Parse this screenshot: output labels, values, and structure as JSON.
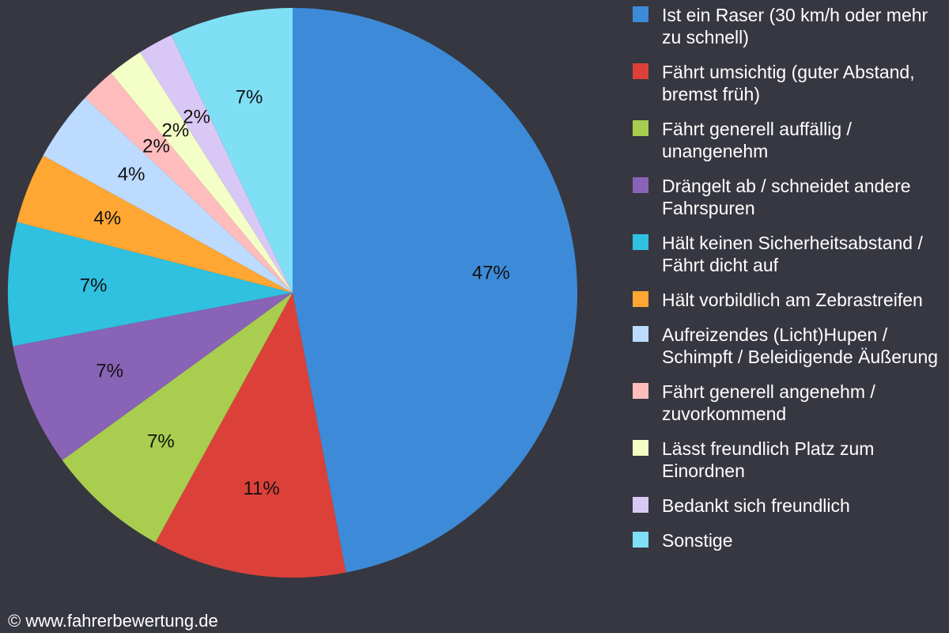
{
  "chart_data": {
    "type": "pie",
    "categories": [
      "Ist ein Raser (30 km/h oder mehr zu schnell)",
      "Fährt umsichtig (guter Abstand, bremst früh)",
      "Fährt generell auffällig / unangenehm",
      "Drängelt ab / schneidet andere Fahrspuren",
      "Hält keinen Sicherheitsabstand / Fährt dicht auf",
      "Hält vorbildlich am Zebrastreifen",
      "Aufreizendes (Licht)Hupen / Schimpft / Beleidigende Äußerung",
      "Fährt generell angenehm / zuvorkommend",
      "Lässt freundlich Platz zum Einordnen",
      "Bedankt sich freundlich",
      "Sonstige"
    ],
    "values": [
      47,
      11,
      7,
      7,
      7,
      4,
      4,
      2,
      2,
      2,
      7
    ],
    "value_labels": [
      "47%",
      "11%",
      "7%",
      "7%",
      "7%",
      "4%",
      "4%",
      "2%",
      "2%",
      "2%",
      "7%"
    ],
    "colors": [
      "#3d8bd8",
      "#dc4139",
      "#a8cd4f",
      "#8963b5",
      "#30c0e0",
      "#ffa633",
      "#bcdbff",
      "#ffbcbc",
      "#f3ffc6",
      "#d9c8f5",
      "#7fdff5"
    ],
    "legend": "right",
    "source": "© www.fahrerbewertung.de"
  }
}
